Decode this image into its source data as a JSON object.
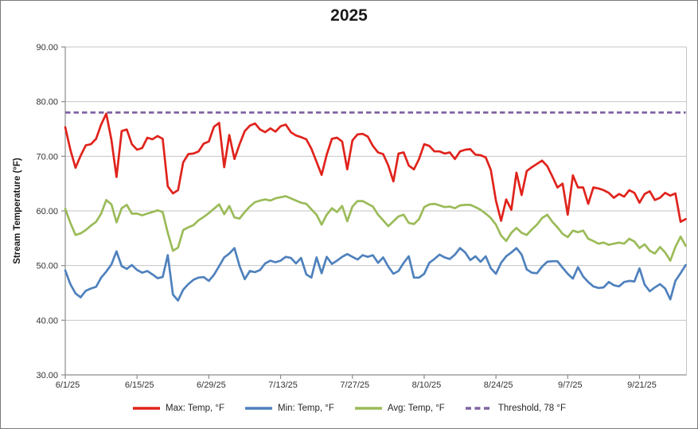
{
  "chart_data": {
    "type": "line",
    "title": "2025",
    "ylabel": "Stream Temperature (°F)",
    "ylim": [
      30,
      90
    ],
    "ytick_step": 10,
    "ytick_labels": [
      "30.00",
      "40.00",
      "50.00",
      "60.00",
      "70.00",
      "80.00",
      "90.00"
    ],
    "xtick_labels": [
      "6/1/25",
      "6/15/25",
      "6/29/25",
      "7/13/25",
      "7/27/25",
      "8/10/25",
      "8/24/25",
      "9/7/25",
      "9/21/25"
    ],
    "x_start": "6/1/25",
    "x_end": "9/30/25",
    "points_per_series": 122,
    "x_tick_every_days": 14,
    "grid": "horizontal",
    "legend_position": "bottom",
    "series": [
      {
        "name": "Max: Temp, °F",
        "color": "#e0231c",
        "dash": "solid",
        "values": [
          75.3,
          71.2,
          67.9,
          70.1,
          72.0,
          72.2,
          73.2,
          75.8,
          77.8,
          73.0,
          66.2,
          74.6,
          74.9,
          72.2,
          71.2,
          71.5,
          73.4,
          73.1,
          73.7,
          73.2,
          64.5,
          63.2,
          63.8,
          68.9,
          70.4,
          70.5,
          70.9,
          72.3,
          72.7,
          75.4,
          76.1,
          68.0,
          73.9,
          69.5,
          72.2,
          74.6,
          75.6,
          76.0,
          74.9,
          74.4,
          75.1,
          74.5,
          75.5,
          75.8,
          74.4,
          73.8,
          73.5,
          73.1,
          71.4,
          69.0,
          66.6,
          70.3,
          73.2,
          73.4,
          72.7,
          67.6,
          72.9,
          74.0,
          74.1,
          73.6,
          71.9,
          70.7,
          70.4,
          68.3,
          65.4,
          70.5,
          70.7,
          68.3,
          67.6,
          69.5,
          72.2,
          71.9,
          70.9,
          70.9,
          70.5,
          70.7,
          69.5,
          70.9,
          71.2,
          71.3,
          70.3,
          70.2,
          69.8,
          67.5,
          61.9,
          58.2,
          62.1,
          60.2,
          67.0,
          62.9,
          67.3,
          68.0,
          68.6,
          69.2,
          68.2,
          66.3,
          64.3,
          65.0,
          59.3,
          66.5,
          64.3,
          64.3,
          61.3,
          64.3,
          64.1,
          63.8,
          63.3,
          62.4,
          63.1,
          62.6,
          63.8,
          63.3,
          61.5,
          63.1,
          63.6,
          62.0,
          62.4,
          63.3,
          62.8,
          63.2,
          58.0,
          58.5
        ]
      },
      {
        "name": "Min: Temp, °F",
        "color": "#4f81bd",
        "dash": "solid",
        "values": [
          49.1,
          46.6,
          44.9,
          44.2,
          45.4,
          45.8,
          46.1,
          47.8,
          48.9,
          50.2,
          52.6,
          49.9,
          49.4,
          50.1,
          49.2,
          48.7,
          49.0,
          48.4,
          47.7,
          47.9,
          51.9,
          44.7,
          43.6,
          45.6,
          46.6,
          47.4,
          47.8,
          47.9,
          47.2,
          48.3,
          49.9,
          51.5,
          52.2,
          53.2,
          49.9,
          47.5,
          49.0,
          48.8,
          49.2,
          50.4,
          50.9,
          50.6,
          50.9,
          51.6,
          51.4,
          50.4,
          51.4,
          48.4,
          47.8,
          51.5,
          48.6,
          51.6,
          50.3,
          50.9,
          51.6,
          52.1,
          51.6,
          51.1,
          51.9,
          51.6,
          51.9,
          50.5,
          51.5,
          49.8,
          48.5,
          49.0,
          50.5,
          51.7,
          47.8,
          47.8,
          48.5,
          50.5,
          51.2,
          52.0,
          51.5,
          51.2,
          52.0,
          53.2,
          52.4,
          51.0,
          51.7,
          50.7,
          51.7,
          49.5,
          48.5,
          50.5,
          51.7,
          52.4,
          53.2,
          52.0,
          49.3,
          48.7,
          48.6,
          49.8,
          50.7,
          50.8,
          50.8,
          49.6,
          48.5,
          47.6,
          49.7,
          48.0,
          47.0,
          46.2,
          45.9,
          46.0,
          47.0,
          46.4,
          46.2,
          47.0,
          47.2,
          47.1,
          49.5,
          46.5,
          45.3,
          46.0,
          46.6,
          45.8,
          43.8,
          47.2,
          48.6,
          50.1
        ]
      },
      {
        "name": "Avg: Temp, °F",
        "color": "#9bbb59",
        "dash": "solid",
        "values": [
          60.4,
          57.8,
          55.6,
          55.9,
          56.5,
          57.3,
          58.0,
          59.5,
          62.0,
          61.2,
          57.9,
          60.5,
          61.1,
          59.5,
          59.5,
          59.2,
          59.5,
          59.8,
          60.1,
          59.8,
          56.0,
          52.7,
          53.3,
          56.5,
          57.0,
          57.4,
          58.3,
          58.9,
          59.6,
          60.4,
          61.2,
          59.4,
          60.9,
          58.8,
          58.6,
          59.8,
          60.8,
          61.6,
          61.9,
          62.1,
          61.9,
          62.3,
          62.5,
          62.7,
          62.3,
          61.9,
          61.5,
          61.3,
          60.3,
          59.3,
          57.5,
          59.3,
          60.5,
          59.8,
          60.9,
          58.1,
          60.8,
          61.8,
          61.8,
          61.3,
          60.8,
          59.3,
          58.3,
          57.2,
          58.1,
          59.0,
          59.3,
          57.8,
          57.6,
          58.5,
          60.7,
          61.2,
          61.3,
          61.0,
          60.7,
          60.8,
          60.5,
          61.0,
          61.1,
          61.1,
          60.7,
          60.2,
          59.5,
          58.7,
          57.5,
          55.5,
          54.5,
          56.0,
          56.9,
          56.0,
          55.6,
          56.6,
          57.5,
          58.7,
          59.3,
          58.0,
          57.0,
          55.8,
          55.2,
          56.4,
          56.1,
          56.4,
          54.9,
          54.5,
          54.0,
          54.2,
          53.8,
          54.0,
          54.2,
          54.0,
          54.9,
          54.4,
          53.2,
          53.9,
          52.7,
          52.2,
          53.4,
          52.4,
          50.9,
          53.4,
          55.3,
          53.6
        ]
      }
    ],
    "threshold": {
      "name": "Threshold, 78 °F",
      "value": 78,
      "color": "#8064a2",
      "dash": "dashed"
    }
  },
  "colors": {
    "gridline": "#c6c6c6",
    "plot_border": "#c6c6c6",
    "axis": "#8c8c8c",
    "tick_text": "#333333",
    "background": "#ffffff"
  }
}
